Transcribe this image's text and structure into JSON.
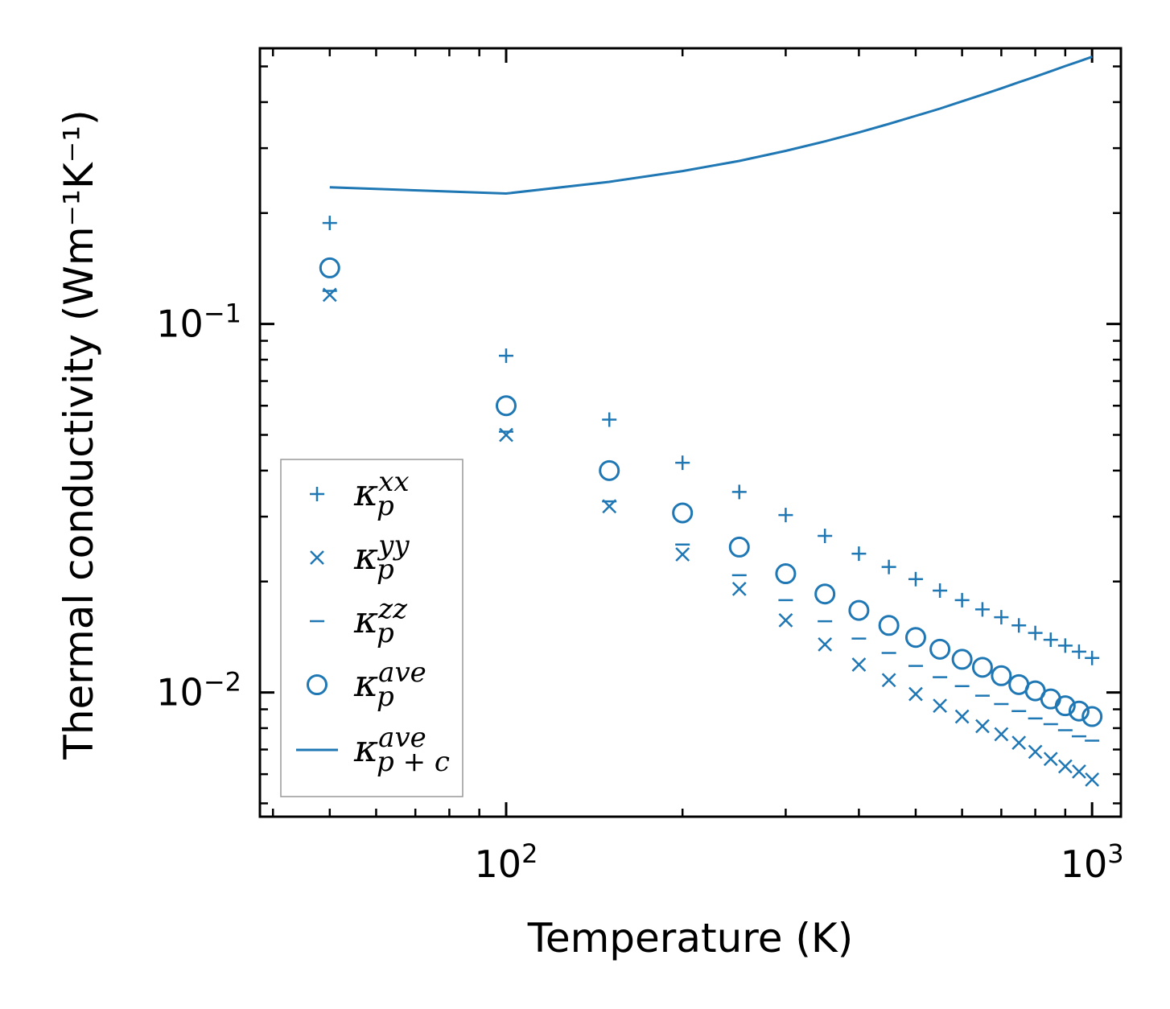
{
  "chart_data": {
    "type": "scatter",
    "title": "",
    "xlabel": "Temperature (K)",
    "ylabel": "Thermal conductivity (Wm⁻¹K⁻¹)",
    "xscale": "log",
    "yscale": "log",
    "xlim": [
      38,
      1120
    ],
    "ylim": [
      0.0046,
      0.56
    ],
    "grid": false,
    "legend_position": "center-left",
    "x_ticks": [
      {
        "value": 100,
        "base": "10",
        "exp": "2"
      },
      {
        "value": 1000,
        "base": "10",
        "exp": "3"
      }
    ],
    "y_ticks": [
      {
        "value": 0.01,
        "base": "10",
        "exp": "−2"
      },
      {
        "value": 0.1,
        "base": "10",
        "exp": "−1"
      }
    ],
    "x": [
      50,
      100,
      150,
      200,
      250,
      300,
      350,
      400,
      450,
      500,
      550,
      600,
      650,
      700,
      750,
      800,
      850,
      900,
      950,
      1000
    ],
    "series": [
      {
        "name": "kp_xx",
        "label_base": "κ",
        "label_sub": "p",
        "label_sup": "xx",
        "marker": "plus",
        "values": [
          0.188,
          0.082,
          0.055,
          0.042,
          0.035,
          0.0303,
          0.0266,
          0.0238,
          0.0219,
          0.0203,
          0.0189,
          0.0178,
          0.0168,
          0.016,
          0.0152,
          0.0145,
          0.0139,
          0.0134,
          0.0129,
          0.0124
        ]
      },
      {
        "name": "kp_yy",
        "label_base": "κ",
        "label_sub": "p",
        "label_sup": "yy",
        "marker": "x",
        "values": [
          0.12,
          0.05,
          0.032,
          0.0237,
          0.0191,
          0.0157,
          0.0135,
          0.0119,
          0.0108,
          0.0099,
          0.0092,
          0.0086,
          0.0081,
          0.0077,
          0.0073,
          0.0069,
          0.0066,
          0.0063,
          0.0061,
          0.0058
        ]
      },
      {
        "name": "kp_zz",
        "label_base": "κ",
        "label_sub": "p",
        "label_sup": "zz",
        "marker": "hline",
        "values": [
          0.123,
          0.051,
          0.033,
          0.0252,
          0.0208,
          0.0178,
          0.0156,
          0.014,
          0.0128,
          0.0118,
          0.011,
          0.0104,
          0.0098,
          0.0093,
          0.0089,
          0.0085,
          0.0082,
          0.0079,
          0.0076,
          0.0074
        ]
      },
      {
        "name": "kp_ave",
        "label_base": "κ",
        "label_sub": "p",
        "label_sup": "ave",
        "marker": "circle",
        "values": [
          0.142,
          0.06,
          0.04,
          0.0307,
          0.0248,
          0.021,
          0.0185,
          0.0167,
          0.0152,
          0.0141,
          0.0131,
          0.0123,
          0.0117,
          0.0111,
          0.0105,
          0.0101,
          0.0096,
          0.0092,
          0.0089,
          0.0086
        ]
      },
      {
        "name": "kpc_ave",
        "label_base": "κ",
        "label_sub": "p + c",
        "label_sup": "ave",
        "marker": "line",
        "values_x": [
          50,
          100,
          150,
          200,
          250,
          300,
          350,
          400,
          450,
          500,
          550,
          600,
          650,
          700,
          750,
          800,
          850,
          900,
          950,
          1000
        ],
        "values": [
          0.235,
          0.226,
          0.243,
          0.26,
          0.277,
          0.295,
          0.313,
          0.331,
          0.349,
          0.367,
          0.384,
          0.402,
          0.419,
          0.436,
          0.453,
          0.469,
          0.485,
          0.501,
          0.516,
          0.531
        ]
      }
    ],
    "colors": {
      "series": "#1f77b4",
      "axes": "#000000",
      "legend_border": "#999999"
    }
  }
}
